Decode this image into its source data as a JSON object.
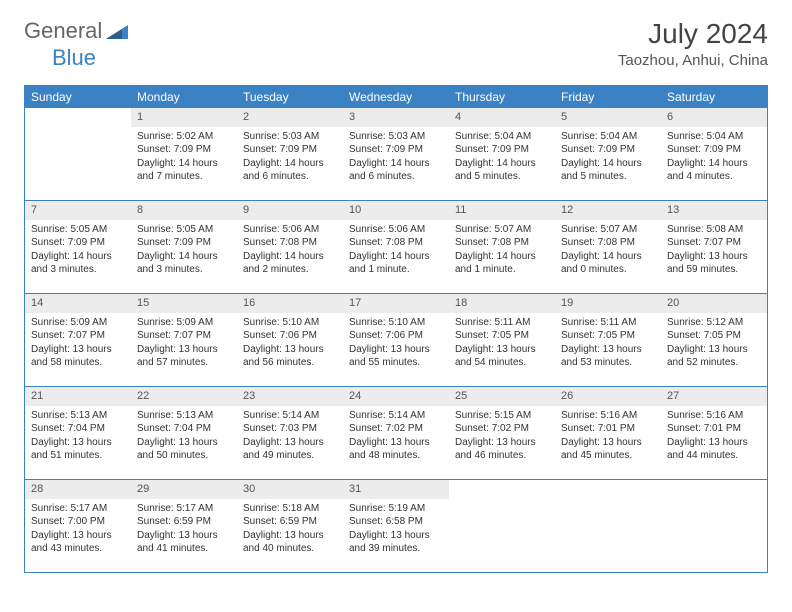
{
  "logo": {
    "text1": "General",
    "text2": "Blue"
  },
  "title": "July 2024",
  "location": "Taozhou, Anhui, China",
  "colors": {
    "header_bg": "#3b82c4",
    "header_text": "#ffffff",
    "daynum_bg": "#ececec",
    "border": "#3b82c4",
    "page_bg": "#ffffff",
    "body_text": "#333333"
  },
  "weekdays": [
    "Sunday",
    "Monday",
    "Tuesday",
    "Wednesday",
    "Thursday",
    "Friday",
    "Saturday"
  ],
  "grid": {
    "start_weekday": 1,
    "days_in_month": 31
  },
  "days": {
    "1": {
      "sunrise": "5:02 AM",
      "sunset": "7:09 PM",
      "daylight": "14 hours and 7 minutes."
    },
    "2": {
      "sunrise": "5:03 AM",
      "sunset": "7:09 PM",
      "daylight": "14 hours and 6 minutes."
    },
    "3": {
      "sunrise": "5:03 AM",
      "sunset": "7:09 PM",
      "daylight": "14 hours and 6 minutes."
    },
    "4": {
      "sunrise": "5:04 AM",
      "sunset": "7:09 PM",
      "daylight": "14 hours and 5 minutes."
    },
    "5": {
      "sunrise": "5:04 AM",
      "sunset": "7:09 PM",
      "daylight": "14 hours and 5 minutes."
    },
    "6": {
      "sunrise": "5:04 AM",
      "sunset": "7:09 PM",
      "daylight": "14 hours and 4 minutes."
    },
    "7": {
      "sunrise": "5:05 AM",
      "sunset": "7:09 PM",
      "daylight": "14 hours and 3 minutes."
    },
    "8": {
      "sunrise": "5:05 AM",
      "sunset": "7:09 PM",
      "daylight": "14 hours and 3 minutes."
    },
    "9": {
      "sunrise": "5:06 AM",
      "sunset": "7:08 PM",
      "daylight": "14 hours and 2 minutes."
    },
    "10": {
      "sunrise": "5:06 AM",
      "sunset": "7:08 PM",
      "daylight": "14 hours and 1 minute."
    },
    "11": {
      "sunrise": "5:07 AM",
      "sunset": "7:08 PM",
      "daylight": "14 hours and 1 minute."
    },
    "12": {
      "sunrise": "5:07 AM",
      "sunset": "7:08 PM",
      "daylight": "14 hours and 0 minutes."
    },
    "13": {
      "sunrise": "5:08 AM",
      "sunset": "7:07 PM",
      "daylight": "13 hours and 59 minutes."
    },
    "14": {
      "sunrise": "5:09 AM",
      "sunset": "7:07 PM",
      "daylight": "13 hours and 58 minutes."
    },
    "15": {
      "sunrise": "5:09 AM",
      "sunset": "7:07 PM",
      "daylight": "13 hours and 57 minutes."
    },
    "16": {
      "sunrise": "5:10 AM",
      "sunset": "7:06 PM",
      "daylight": "13 hours and 56 minutes."
    },
    "17": {
      "sunrise": "5:10 AM",
      "sunset": "7:06 PM",
      "daylight": "13 hours and 55 minutes."
    },
    "18": {
      "sunrise": "5:11 AM",
      "sunset": "7:05 PM",
      "daylight": "13 hours and 54 minutes."
    },
    "19": {
      "sunrise": "5:11 AM",
      "sunset": "7:05 PM",
      "daylight": "13 hours and 53 minutes."
    },
    "20": {
      "sunrise": "5:12 AM",
      "sunset": "7:05 PM",
      "daylight": "13 hours and 52 minutes."
    },
    "21": {
      "sunrise": "5:13 AM",
      "sunset": "7:04 PM",
      "daylight": "13 hours and 51 minutes."
    },
    "22": {
      "sunrise": "5:13 AM",
      "sunset": "7:04 PM",
      "daylight": "13 hours and 50 minutes."
    },
    "23": {
      "sunrise": "5:14 AM",
      "sunset": "7:03 PM",
      "daylight": "13 hours and 49 minutes."
    },
    "24": {
      "sunrise": "5:14 AM",
      "sunset": "7:02 PM",
      "daylight": "13 hours and 48 minutes."
    },
    "25": {
      "sunrise": "5:15 AM",
      "sunset": "7:02 PM",
      "daylight": "13 hours and 46 minutes."
    },
    "26": {
      "sunrise": "5:16 AM",
      "sunset": "7:01 PM",
      "daylight": "13 hours and 45 minutes."
    },
    "27": {
      "sunrise": "5:16 AM",
      "sunset": "7:01 PM",
      "daylight": "13 hours and 44 minutes."
    },
    "28": {
      "sunrise": "5:17 AM",
      "sunset": "7:00 PM",
      "daylight": "13 hours and 43 minutes."
    },
    "29": {
      "sunrise": "5:17 AM",
      "sunset": "6:59 PM",
      "daylight": "13 hours and 41 minutes."
    },
    "30": {
      "sunrise": "5:18 AM",
      "sunset": "6:59 PM",
      "daylight": "13 hours and 40 minutes."
    },
    "31": {
      "sunrise": "5:19 AM",
      "sunset": "6:58 PM",
      "daylight": "13 hours and 39 minutes."
    }
  },
  "labels": {
    "sunrise": "Sunrise:",
    "sunset": "Sunset:",
    "daylight": "Daylight:"
  }
}
